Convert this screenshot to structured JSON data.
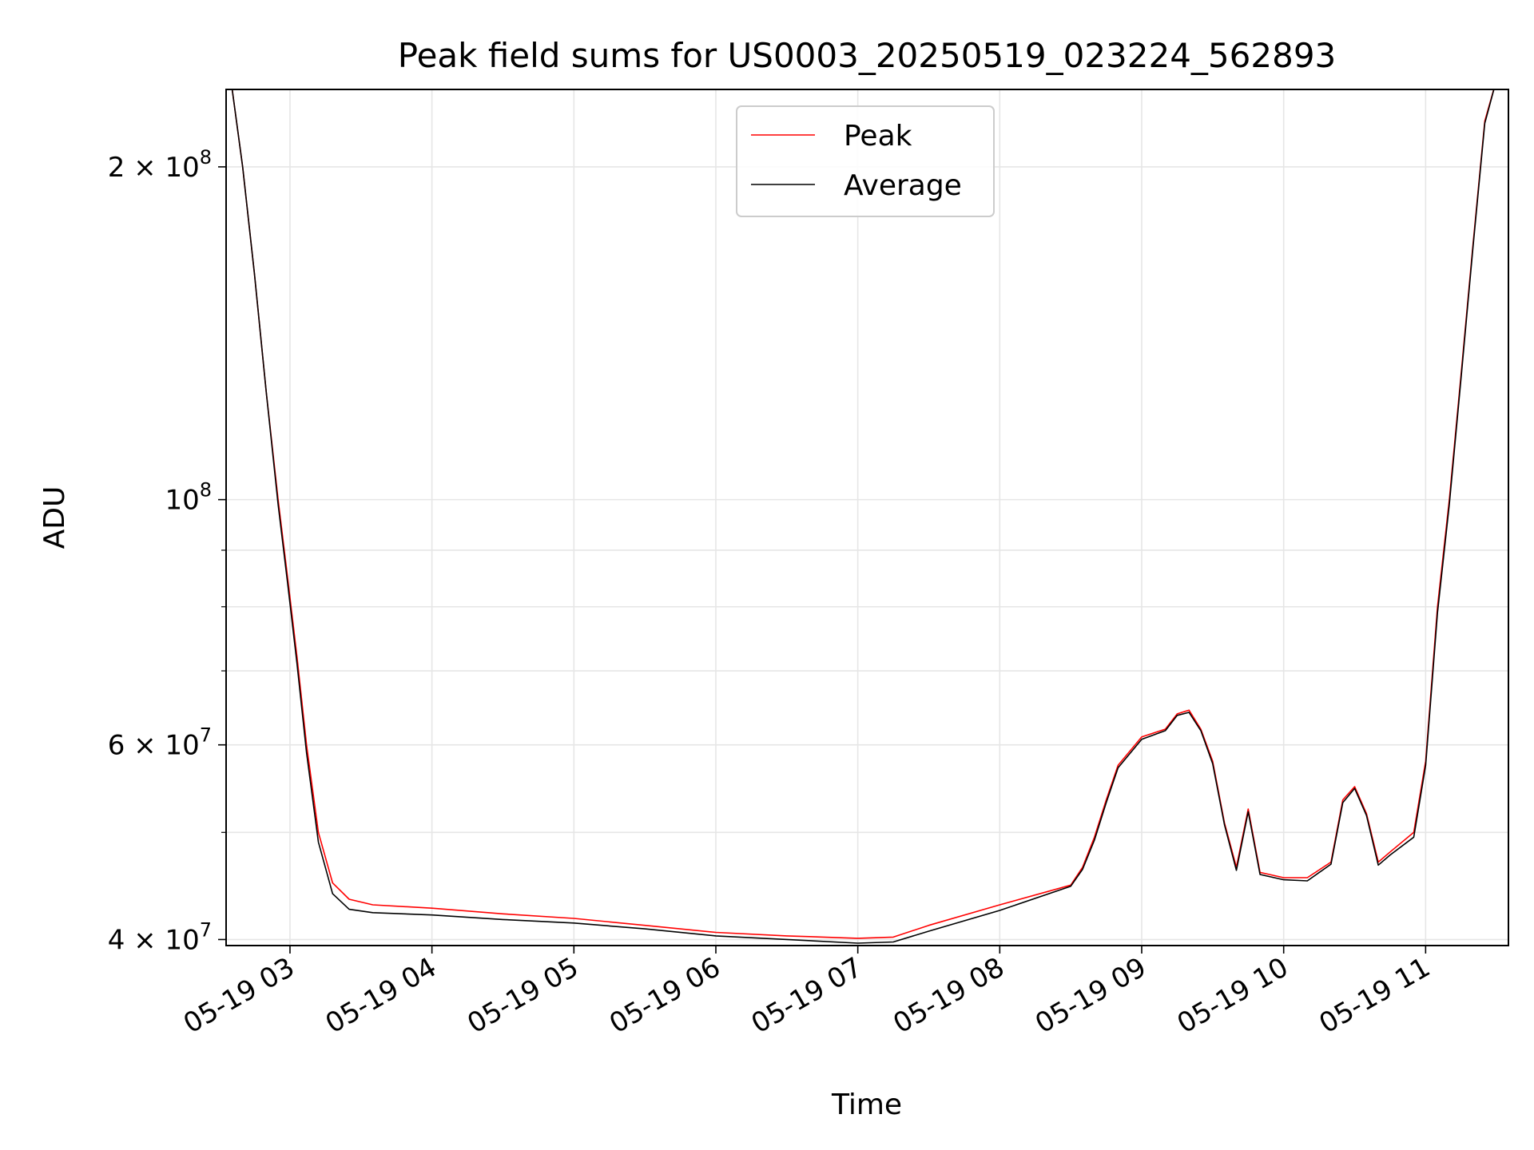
{
  "chart_data": {
    "type": "line",
    "title": "Peak field sums for US0003_20250519_023224_562893",
    "xlabel": "Time",
    "ylabel": "ADU",
    "yscale": "log",
    "ylim": [
      39500000,
      235000000
    ],
    "xlim": [
      "2025-05-19 02:33",
      "2025-05-19 11:35"
    ],
    "grid": true,
    "legend_position": "upper-center",
    "x_ticks": [
      "05-19 03",
      "05-19 04",
      "05-19 05",
      "05-19 06",
      "05-19 07",
      "05-19 08",
      "05-19 09",
      "05-19 10",
      "05-19 11"
    ],
    "x_tick_times": [
      "2025-05-19 03:00",
      "2025-05-19 04:00",
      "2025-05-19 05:00",
      "2025-05-19 06:00",
      "2025-05-19 07:00",
      "2025-05-19 08:00",
      "2025-05-19 09:00",
      "2025-05-19 10:00",
      "2025-05-19 11:00"
    ],
    "y_major_ticks": [
      {
        "value": 40000000,
        "mantissa": "4",
        "exponent": "7"
      },
      {
        "value": 60000000,
        "mantissa": "6",
        "exponent": "7"
      },
      {
        "value": 100000000,
        "mantissa": "",
        "exponent": "8"
      },
      {
        "value": 200000000,
        "mantissa": "2",
        "exponent": "8"
      }
    ],
    "y_minor_ticks": [
      50000000,
      70000000,
      80000000,
      90000000
    ],
    "series": [
      {
        "name": "Peak",
        "color": "#ff0000",
        "x": [
          "2025-05-19 02:35",
          "2025-05-19 02:40",
          "2025-05-19 02:45",
          "2025-05-19 02:50",
          "2025-05-19 02:55",
          "2025-05-19 02:59",
          "2025-05-19 03:03",
          "2025-05-19 03:07",
          "2025-05-19 03:12",
          "2025-05-19 03:18",
          "2025-05-19 03:25",
          "2025-05-19 03:35",
          "2025-05-19 04:00",
          "2025-05-19 04:30",
          "2025-05-19 05:00",
          "2025-05-19 05:30",
          "2025-05-19 06:00",
          "2025-05-19 06:30",
          "2025-05-19 07:00",
          "2025-05-19 07:15",
          "2025-05-19 07:30",
          "2025-05-19 08:00",
          "2025-05-19 08:30",
          "2025-05-19 08:35",
          "2025-05-19 08:40",
          "2025-05-19 08:45",
          "2025-05-19 08:50",
          "2025-05-19 09:00",
          "2025-05-19 09:10",
          "2025-05-19 09:15",
          "2025-05-19 09:20",
          "2025-05-19 09:25",
          "2025-05-19 09:30",
          "2025-05-19 09:35",
          "2025-05-19 09:40",
          "2025-05-19 09:45",
          "2025-05-19 09:50",
          "2025-05-19 10:00",
          "2025-05-19 10:10",
          "2025-05-19 10:20",
          "2025-05-19 10:25",
          "2025-05-19 10:30",
          "2025-05-19 10:35",
          "2025-05-19 10:40",
          "2025-05-19 10:45",
          "2025-05-19 10:55",
          "2025-05-19 11:00",
          "2025-05-19 11:05",
          "2025-05-19 11:10",
          "2025-05-19 11:15",
          "2025-05-19 11:20",
          "2025-05-19 11:25",
          "2025-05-19 11:30"
        ],
        "y": [
          240000000,
          200000000,
          160000000,
          125000000,
          100000000,
          85000000,
          72000000,
          60000000,
          50000000,
          45000000,
          43500000,
          43000000,
          42700000,
          42200000,
          41800000,
          41200000,
          40600000,
          40300000,
          40100000,
          40200000,
          41200000,
          43000000,
          44800000,
          46500000,
          49500000,
          53500000,
          57500000,
          61000000,
          62000000,
          64000000,
          64500000,
          62000000,
          58000000,
          51000000,
          46500000,
          52500000,
          46000000,
          45500000,
          45500000,
          47000000,
          53500000,
          55000000,
          52000000,
          47000000,
          48000000,
          50000000,
          58000000,
          80000000,
          100000000,
          130000000,
          170000000,
          220000000,
          240000000
        ]
      },
      {
        "name": "Average",
        "color": "#000000",
        "x": [
          "2025-05-19 02:35",
          "2025-05-19 02:40",
          "2025-05-19 02:45",
          "2025-05-19 02:50",
          "2025-05-19 02:55",
          "2025-05-19 02:59",
          "2025-05-19 03:03",
          "2025-05-19 03:07",
          "2025-05-19 03:12",
          "2025-05-19 03:18",
          "2025-05-19 03:25",
          "2025-05-19 03:35",
          "2025-05-19 04:00",
          "2025-05-19 04:30",
          "2025-05-19 05:00",
          "2025-05-19 05:30",
          "2025-05-19 06:00",
          "2025-05-19 06:30",
          "2025-05-19 07:00",
          "2025-05-19 07:15",
          "2025-05-19 07:30",
          "2025-05-19 08:00",
          "2025-05-19 08:30",
          "2025-05-19 08:35",
          "2025-05-19 08:40",
          "2025-05-19 08:45",
          "2025-05-19 08:50",
          "2025-05-19 09:00",
          "2025-05-19 09:10",
          "2025-05-19 09:15",
          "2025-05-19 09:20",
          "2025-05-19 09:25",
          "2025-05-19 09:30",
          "2025-05-19 09:35",
          "2025-05-19 09:40",
          "2025-05-19 09:45",
          "2025-05-19 09:50",
          "2025-05-19 10:00",
          "2025-05-19 10:10",
          "2025-05-19 10:20",
          "2025-05-19 10:25",
          "2025-05-19 10:30",
          "2025-05-19 10:35",
          "2025-05-19 10:40",
          "2025-05-19 10:45",
          "2025-05-19 10:55",
          "2025-05-19 11:00",
          "2025-05-19 11:05",
          "2025-05-19 11:10",
          "2025-05-19 11:15",
          "2025-05-19 11:20",
          "2025-05-19 11:25",
          "2025-05-19 11:30"
        ],
        "y": [
          240000000,
          200000000,
          160000000,
          125000000,
          99000000,
          84000000,
          71000000,
          59000000,
          49000000,
          44000000,
          42600000,
          42300000,
          42100000,
          41700000,
          41400000,
          40900000,
          40300000,
          40000000,
          39700000,
          39800000,
          40700000,
          42500000,
          44700000,
          46300000,
          49200000,
          53200000,
          57200000,
          60700000,
          61800000,
          63800000,
          64200000,
          61800000,
          57700000,
          50800000,
          46200000,
          52200000,
          45800000,
          45300000,
          45200000,
          46800000,
          53200000,
          54800000,
          51800000,
          46700000,
          47700000,
          49500000,
          57500000,
          79000000,
          99000000,
          129000000,
          169000000,
          219000000,
          240000000
        ]
      }
    ]
  }
}
